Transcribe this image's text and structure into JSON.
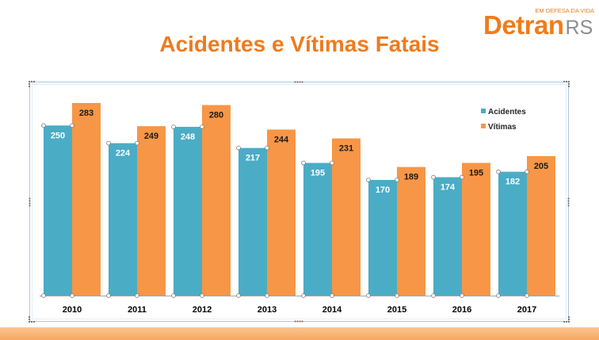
{
  "logo": {
    "tagline": "EM DEFESA DA VIDA",
    "brand_main": "Detran",
    "brand_suffix": "RS"
  },
  "colors": {
    "title": "#EE7B1E",
    "brand": "#F07C1A",
    "brand_suffix": "#8C8C8C",
    "axis": "#A6A6A6",
    "legend_text": "#262626",
    "tick_text": "#000000"
  },
  "chart_data": {
    "type": "bar",
    "title": "Acidentes e Vítimas Fatais",
    "categories": [
      "2010",
      "2011",
      "2012",
      "2013",
      "2014",
      "2015",
      "2016",
      "2017"
    ],
    "series": [
      {
        "name": "Acidentes",
        "values": [
          250,
          224,
          248,
          217,
          195,
          170,
          174,
          182
        ],
        "color": "#4BACC6",
        "label_color": "#FFFFFF",
        "selected": true
      },
      {
        "name": "Vítimas",
        "values": [
          283,
          249,
          280,
          244,
          231,
          189,
          195,
          205
        ],
        "color": "#F79646",
        "label_color": "#1A1A1A",
        "selected": false
      }
    ],
    "ylim": [
      0,
      300
    ],
    "y_axis_visible": false,
    "grid": false,
    "data_labels": true,
    "legend": "top-right"
  }
}
